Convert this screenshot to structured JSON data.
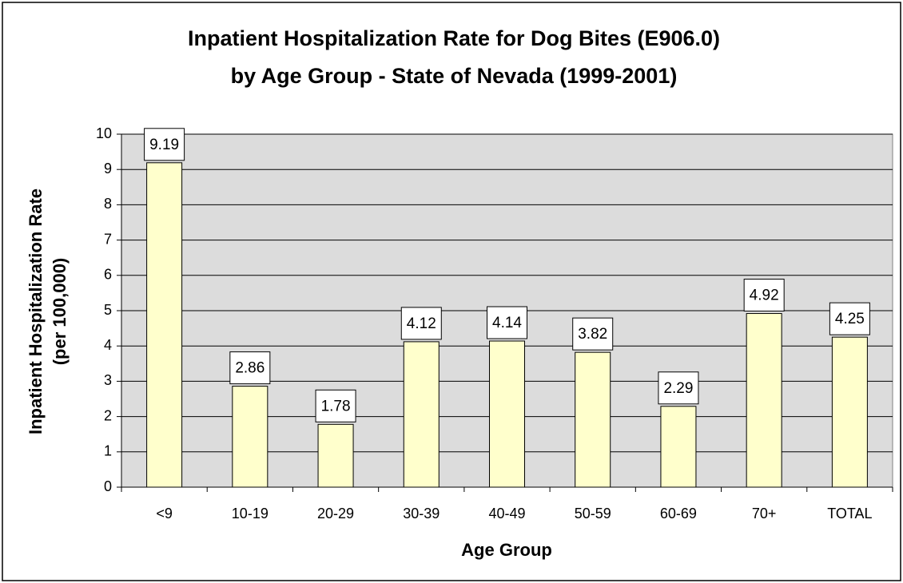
{
  "chart_data": {
    "type": "bar",
    "title": [
      "Inpatient Hospitalization Rate for Dog Bites (E906.0)",
      "by Age Group - State of Nevada (1999-2001)"
    ],
    "x_label": "Age Group",
    "y_label": [
      "Inpatient Hospitalization Rate",
      "(per 100,000)"
    ],
    "categories": [
      "<9",
      "10-19",
      "20-29",
      "30-39",
      "40-49",
      "50-59",
      "60-69",
      "70+",
      "TOTAL"
    ],
    "values": [
      9.19,
      2.86,
      1.78,
      4.12,
      4.14,
      3.82,
      2.29,
      4.92,
      4.25
    ],
    "color": "#ffffcc",
    "ylim": [
      0,
      10
    ],
    "yticks": [
      0,
      1,
      2,
      3,
      4,
      5,
      6,
      7,
      8,
      9,
      10
    ],
    "grid": true
  }
}
